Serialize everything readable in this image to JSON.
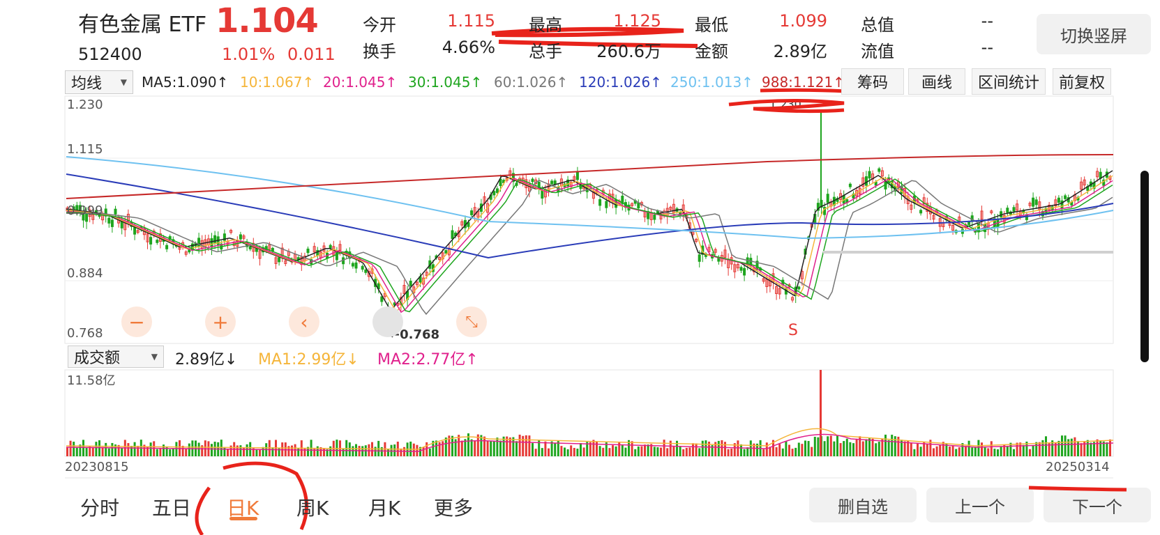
{
  "header": {
    "name": "有色金属 ETF",
    "price": "1.104",
    "code": "512400",
    "change_pct": "1.01%",
    "change_abs": "0.011",
    "quotes": [
      {
        "label": "今开",
        "value": "1.115",
        "color": "#e53935"
      },
      {
        "label": "最高",
        "value": "1.125",
        "color": "#e53935"
      },
      {
        "label": "最低",
        "value": "1.099",
        "color": "#e53935"
      },
      {
        "label": "总值",
        "value": "--",
        "color": "#222222"
      },
      {
        "label": "换手",
        "value": "4.66%",
        "color": "#222222"
      },
      {
        "label": "总手",
        "value": "260.6万",
        "color": "#222222"
      },
      {
        "label": "金额",
        "value": "2.89亿",
        "color": "#222222"
      },
      {
        "label": "流值",
        "value": "--",
        "color": "#222222"
      }
    ],
    "switch_button": "切换竖屏"
  },
  "ma_bar": {
    "select": "均线",
    "items": [
      {
        "label": "MA5:1.090↑",
        "color": "#222222"
      },
      {
        "label": "10:1.067↑",
        "color": "#f5b53a"
      },
      {
        "label": "20:1.045↑",
        "color": "#e0208c"
      },
      {
        "label": "30:1.045↑",
        "color": "#1ea51e"
      },
      {
        "label": "60:1.026↑",
        "color": "#777777"
      },
      {
        "label": "120:1.026↑",
        "color": "#2a3cb8"
      },
      {
        "label": "250:1.013↑",
        "color": "#6ec1f0"
      },
      {
        "label": "988:1.121↑",
        "color": "#c62828"
      }
    ],
    "tools": [
      "筹码",
      "画线",
      "区间统计",
      "前复权"
    ]
  },
  "kline": {
    "y_ticks": [
      "1.230",
      "1.115",
      "0.999",
      "0.884",
      "0.768"
    ],
    "low_marker": "0.768",
    "high_marker": "1.230",
    "signal": "S",
    "zoom_buttons": [
      "−",
      "+",
      "‹",
      "⤡"
    ]
  },
  "volume": {
    "select": "成交额",
    "current": "2.89亿↓",
    "ma1": "MA1:2.99亿↓",
    "ma2": "MA2:2.77亿↑",
    "max_label": "11.58亿",
    "start_date": "20230815",
    "end_date": "20250314"
  },
  "tabs": [
    "分时",
    "五日",
    "日K",
    "周K",
    "月K",
    "更多"
  ],
  "active_tab": "日K",
  "actions": [
    "删自选",
    "上一个",
    "下一个"
  ],
  "colors": {
    "up": "#e53935",
    "down": "#1ea51e",
    "accent": "#f07a3a"
  }
}
